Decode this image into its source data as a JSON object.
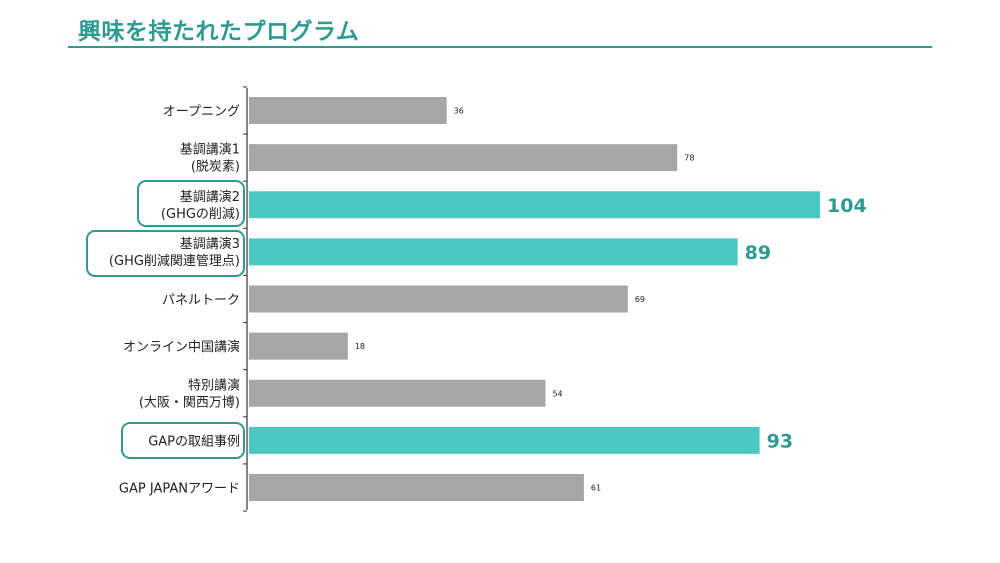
{
  "title": "興味を持たれたプログラム",
  "colors": {
    "accent": "#4cc8c3",
    "accent_text": "#2e9a92",
    "bar": "#a6a6a6"
  },
  "chart_data": {
    "type": "bar",
    "orientation": "horizontal",
    "title": "",
    "xlabel": "",
    "ylabel": "",
    "categories": [
      [
        "オープニング"
      ],
      [
        "基調講演1",
        "(脱炭素)"
      ],
      [
        "基調講演2",
        "(GHGの削減)"
      ],
      [
        "基調講演3",
        "(GHG削減関連管理点)"
      ],
      [
        "パネルトーク"
      ],
      [
        "オンライン中国講演"
      ],
      [
        "特別講演",
        "(大阪・関西万博)"
      ],
      [
        "GAPの取組事例"
      ],
      [
        "GAP JAPANアワード"
      ]
    ],
    "values": [
      36,
      78,
      104,
      89,
      69,
      18,
      54,
      93,
      61
    ],
    "highlighted": [
      false,
      false,
      true,
      true,
      false,
      false,
      false,
      true,
      false
    ],
    "xlim": [
      0,
      104
    ],
    "grid": false,
    "legend": "none"
  }
}
